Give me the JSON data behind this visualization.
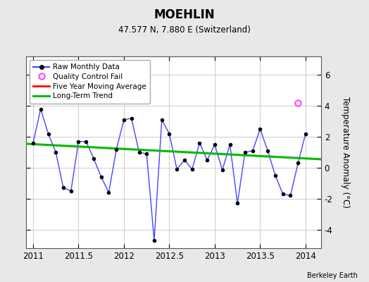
{
  "title": "MOEHLIN",
  "subtitle": "47.577 N, 7.880 E (Switzerland)",
  "ylabel": "Temperature Anomaly (°C)",
  "credit": "Berkeley Earth",
  "xlim": [
    2010.92,
    2014.17
  ],
  "ylim": [
    -5.2,
    7.2
  ],
  "yticks": [
    -4,
    -2,
    0,
    2,
    4,
    6
  ],
  "xticks": [
    2011,
    2011.5,
    2012,
    2012.5,
    2013,
    2013.5,
    2014
  ],
  "background_color": "#e8e8e8",
  "plot_bg_color": "#ffffff",
  "raw_x": [
    2011.0,
    2011.083,
    2011.167,
    2011.25,
    2011.333,
    2011.417,
    2011.5,
    2011.583,
    2011.667,
    2011.75,
    2011.833,
    2011.917,
    2012.0,
    2012.083,
    2012.167,
    2012.25,
    2012.333,
    2012.417,
    2012.5,
    2012.583,
    2012.667,
    2012.75,
    2012.833,
    2012.917,
    2013.0,
    2013.083,
    2013.167,
    2013.25,
    2013.333,
    2013.417,
    2013.5,
    2013.583,
    2013.667,
    2013.75,
    2013.833,
    2013.917,
    2014.0
  ],
  "raw_y": [
    1.6,
    3.8,
    2.2,
    1.0,
    -1.3,
    -1.5,
    1.7,
    1.7,
    0.6,
    -0.6,
    -1.6,
    1.2,
    3.1,
    3.2,
    1.0,
    0.9,
    -4.7,
    3.1,
    2.2,
    -0.1,
    0.5,
    -0.1,
    1.6,
    0.5,
    1.5,
    -0.15,
    1.5,
    -2.3,
    1.0,
    1.1,
    2.5,
    1.1,
    -0.5,
    -1.7,
    -1.8,
    0.3,
    2.2
  ],
  "qc_fail_x": [
    2013.917
  ],
  "qc_fail_y": [
    4.2
  ],
  "trend_x": [
    2010.92,
    2014.17
  ],
  "trend_y": [
    1.55,
    0.55
  ],
  "raw_line_color": "#4444ff",
  "marker_color": "#000000",
  "qc_color": "#ff44ff",
  "moving_avg_color": "#ff0000",
  "trend_color": "#00bb00",
  "grid_color": "#cccccc"
}
